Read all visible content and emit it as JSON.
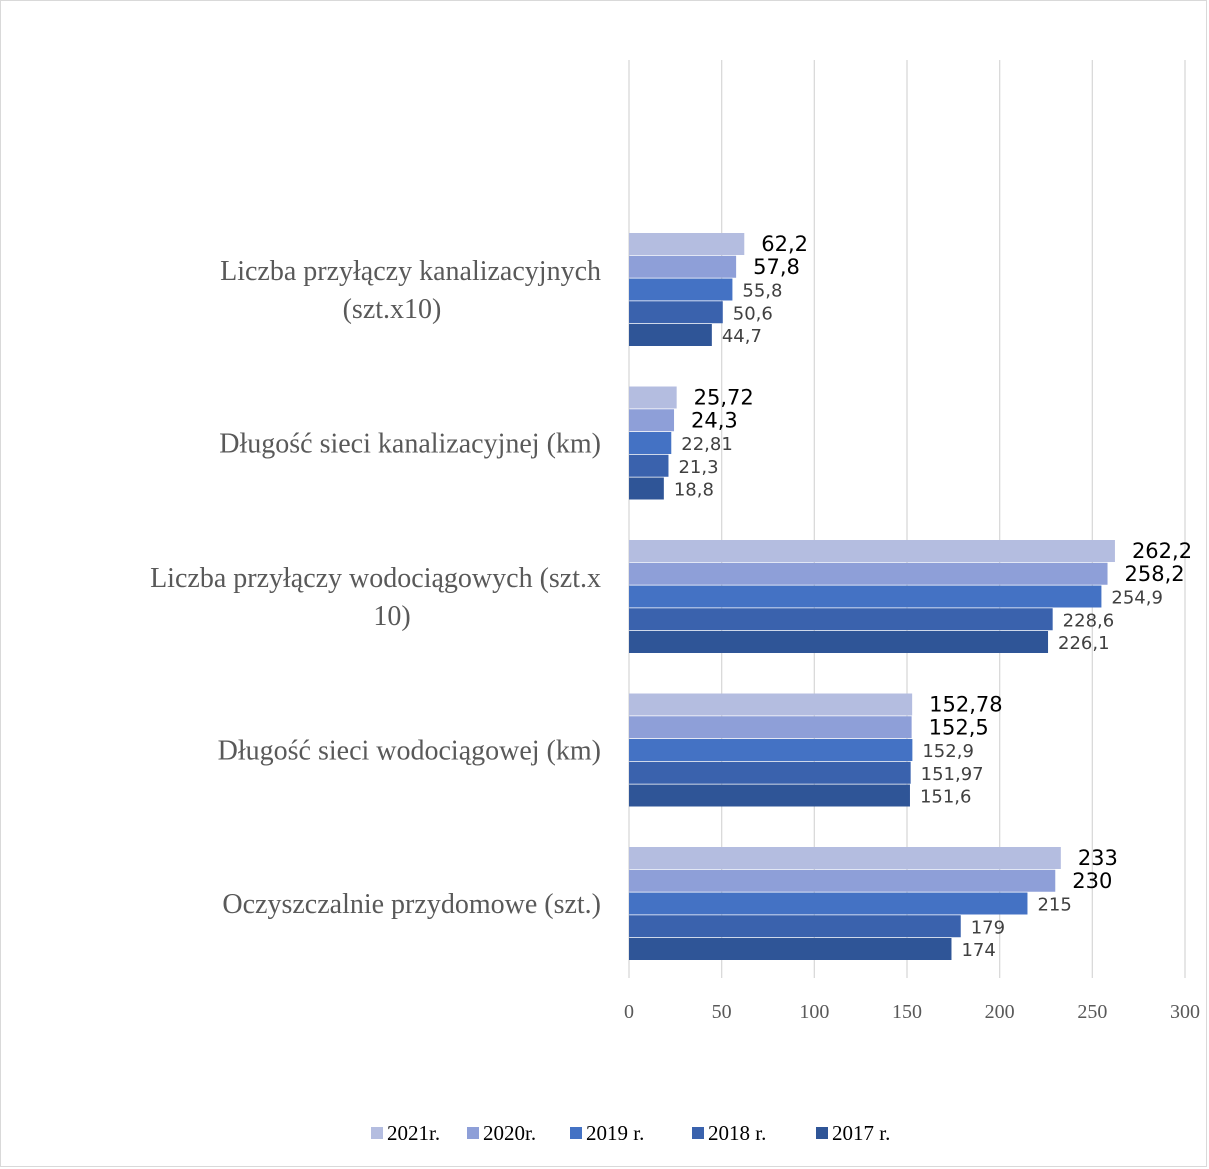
{
  "chart_data": {
    "type": "bar",
    "orientation": "horizontal",
    "title": "",
    "xlabel": "",
    "ylabel": "",
    "xlim": [
      0,
      300
    ],
    "ticks": [
      0,
      50,
      100,
      150,
      200,
      250,
      300
    ],
    "grid": true,
    "legend_position": "bottom",
    "categories": [
      [
        "Liczba przyłączy kanalizacyjnych",
        "(szt.x10)"
      ],
      [
        "Długość sieci kanalizacyjnej (km)"
      ],
      [
        "Liczba przyłączy wodociągowych (szt.x",
        "10)"
      ],
      [
        "Długość sieci wodociągowej (km)"
      ],
      [
        "Oczyszczalnie przydomowe (szt.)"
      ]
    ],
    "series": [
      {
        "name": "2021r.",
        "color": "#b4bde0",
        "values": [
          62.2,
          25.72,
          262.2,
          152.78,
          233
        ],
        "labels": [
          "62,2",
          "25,72",
          "262,2",
          "152,78",
          "233"
        ]
      },
      {
        "name": "2020r.",
        "color": "#8e9fd8",
        "values": [
          57.8,
          24.3,
          258.2,
          152.5,
          230
        ],
        "labels": [
          "57,8",
          "24,3",
          "258,2",
          "152,5",
          "230"
        ]
      },
      {
        "name": "2019 r.",
        "color": "#4472c4",
        "values": [
          55.8,
          22.81,
          254.9,
          152.9,
          215
        ],
        "labels": [
          "55,8",
          "22,81",
          "254,9",
          "152,9",
          "215"
        ]
      },
      {
        "name": "2018 r.",
        "color": "#3a62ad",
        "values": [
          50.6,
          21.3,
          228.6,
          151.97,
          179
        ],
        "labels": [
          "50,6",
          "21,3",
          "228,6",
          "151,97",
          "179"
        ]
      },
      {
        "name": "2017 r.",
        "color": "#2f5597",
        "values": [
          44.7,
          18.8,
          226.1,
          151.6,
          174
        ],
        "labels": [
          "44,7",
          "18,8",
          "226,1",
          "151,6",
          "174"
        ]
      }
    ]
  }
}
